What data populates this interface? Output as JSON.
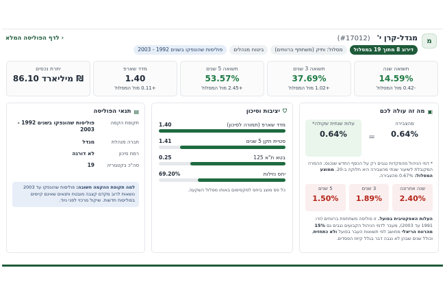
{
  "header": {
    "logo_letter": "מ",
    "title": "מגדל-קרן י'",
    "code": "(#17012)",
    "back_link": "‹ לדף הפוליסה המלא",
    "chips": [
      {
        "label": "דירוג 8 מתוך 19 במסלול",
        "style": "rank"
      },
      {
        "label": "מסלול: ותיק (משתתף ברווחים)",
        "style": "plain"
      },
      {
        "label": "ביטוח מנהלים",
        "style": "plain"
      },
      {
        "label": "פוליסות שהונפקו בשנים 1992 - 2003",
        "style": "blue"
      }
    ]
  },
  "stats": [
    {
      "label": "תשואה שנה",
      "value": "14.59%",
      "sub": "-0.42 מול המסלול",
      "green": true
    },
    {
      "label": "תשואה 3 שנים",
      "value": "37.69%",
      "sub": "+1.02 מול המסלול",
      "green": true
    },
    {
      "label": "תשואה 5 שנים",
      "value": "53.57%",
      "sub": "+2.45 מול המסלול",
      "green": true
    },
    {
      "label": "מדד שארפ",
      "value": "1.40",
      "sub": "+0.11 מול המסלול",
      "green": false
    },
    {
      "label": "יתרת נכסים",
      "value": "86.10 מיליארד ₪",
      "sub": "",
      "green": false
    }
  ],
  "cost": {
    "title": "מה זה עולה לכם",
    "mgmt_label": "מהצבירה",
    "mgmt_value": "0.64%",
    "eq": "=",
    "eff_label": "עלות שנתית שקולה*",
    "eff_value": "0.64%",
    "note": "* דמי הניהול מהפקדות נגבים רק על הכסף החדש שנכנס; ההמרה המקובלת לשיעור שנתי מהצבירה היא חלוקה ב-20.",
    "avg_label": "ממוצע המסלול:",
    "avg_value": "0.67% מהצבירה.",
    "periods": [
      {
        "label": "שנה אחרונה",
        "value": "2.40%"
      },
      {
        "label": "3 שנים",
        "value": "1.89%"
      },
      {
        "label": "5 שנים",
        "value": "1.50%"
      }
    ],
    "foot_bold1": "העלות האפקטיבית בפועל.",
    "foot_text1": "זו פוליסה משתתפת ברווחים (זרו 1991 עד 2003), מעבר לדמי הניהול הקבועים נגבים גם",
    "foot_bold2": "15% מהרווח הריאלי",
    "foot_text2": "מחושב לפי תשואות העבר בפועל",
    "foot_bold3": "ולא כתחזית",
    "foot_text3": ", וכולל שנים שבהן לא נגבה דבר בגלל קיזוז הפסדים."
  },
  "risk": {
    "title": "יציבות וסיכון",
    "rows": [
      {
        "name": "מדד שארפ (תמורה לסיכון)",
        "value": "1.40",
        "fill": 1.0
      },
      {
        "name": "סטיית תקן 5 שנים",
        "value": "1.41",
        "fill": 0.83
      },
      {
        "name": "בטא ת\"א 125",
        "value": "0.25",
        "fill": 0.75
      },
      {
        "name": "יחס נזילות",
        "value": "69.20%",
        "fill": 0.69
      }
    ],
    "note": "כל פס מוצג ביחס למקסימום באותו מסלול השקעה."
  },
  "terms": {
    "title": "תנאי הפוליסה",
    "rows": [
      {
        "key": "תקופת הקמה",
        "value": "פוליסות שהונפקו בשנים 1992 - 2003",
        "tall": true
      },
      {
        "key": "חברה מנהלת",
        "value": "מגדל",
        "tall": false
      },
      {
        "key": "רמת סיכון",
        "value": "לא דורגה",
        "tall": false
      },
      {
        "key": "סה\"כ בקטגוריה",
        "value": "19",
        "tall": false
      }
    ],
    "alert_bold": "למה תקופת ההקמה חשובה:",
    "alert_text": "פוליסות שהונפקו עד 2003 נושאות לרוב מקדם קצבה מובטח ותנאים שאינם קיימים בפוליסות חדשות. שיקול מרכזי לפני ניוד."
  }
}
